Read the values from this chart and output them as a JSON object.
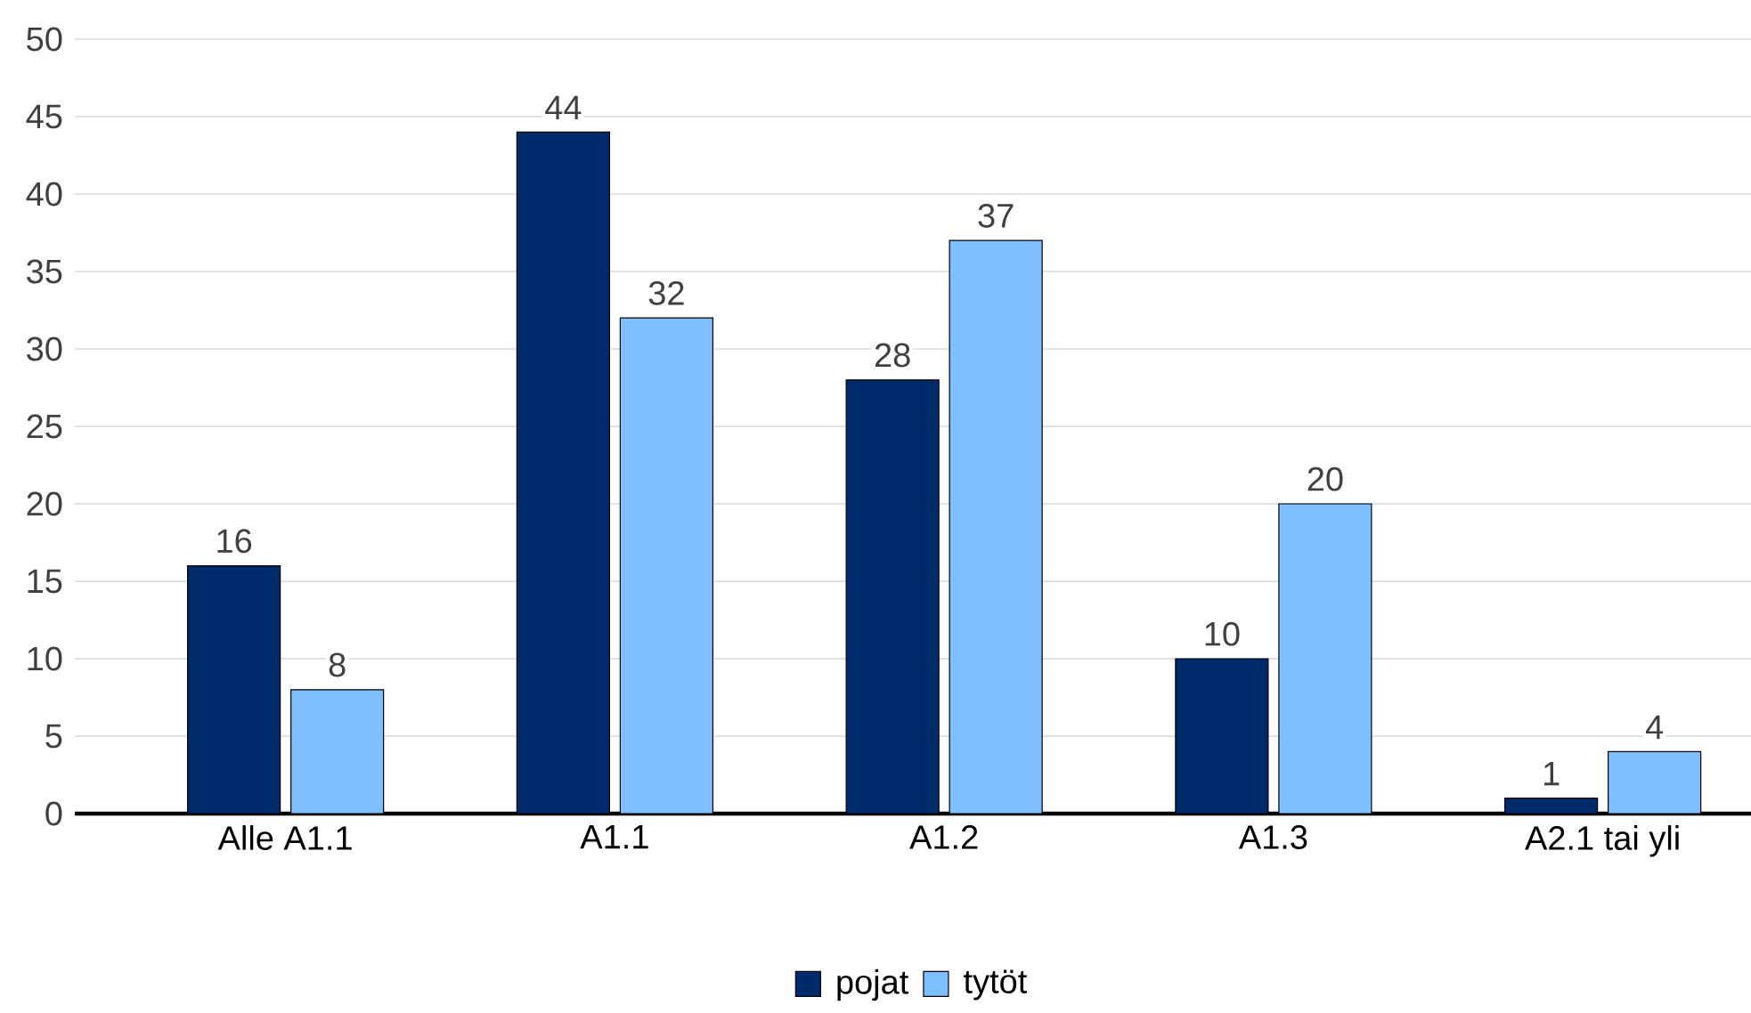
{
  "chart_data": {
    "type": "bar",
    "categories": [
      "Alle A1.1",
      "A1.1",
      "A1.2",
      "A1.3",
      "A2.1 tai yli"
    ],
    "series": [
      {
        "name": "pojat",
        "color": "#002b6b",
        "values": [
          16,
          44,
          28,
          10,
          1
        ]
      },
      {
        "name": "tytöt",
        "color": "#7fbfff",
        "values": [
          8,
          32,
          37,
          20,
          4
        ]
      }
    ],
    "ylim": [
      0,
      50
    ],
    "yticks": [
      0,
      5,
      10,
      15,
      20,
      25,
      30,
      35,
      40,
      45,
      50
    ],
    "grid": "y",
    "legend": "bottom",
    "data_labels": true
  }
}
